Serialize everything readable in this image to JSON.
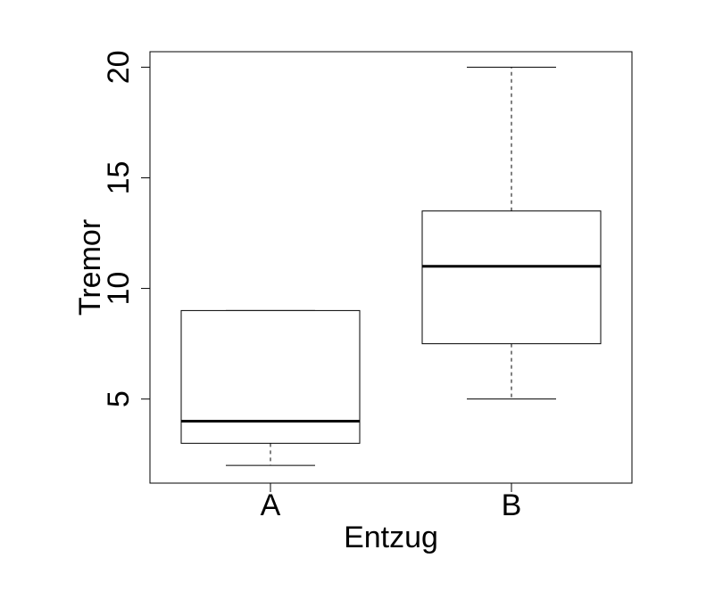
{
  "chart_data": {
    "type": "boxplot",
    "xlabel": "Entzug",
    "ylabel": "Tremor",
    "categories": [
      "A",
      "B"
    ],
    "boxes": [
      {
        "category": "A",
        "whisker_low": 2,
        "q1": 3,
        "median": 4,
        "q3": 9,
        "whisker_high": 9
      },
      {
        "category": "B",
        "whisker_low": 5,
        "q1": 7.5,
        "median": 11,
        "q3": 13.5,
        "whisker_high": 20
      }
    ],
    "ylim": [
      1.2,
      20.7
    ],
    "yticks": [
      5,
      10,
      15,
      20
    ],
    "ytick_labels": [
      "5",
      "10",
      "15",
      "20"
    ],
    "grid": false
  }
}
